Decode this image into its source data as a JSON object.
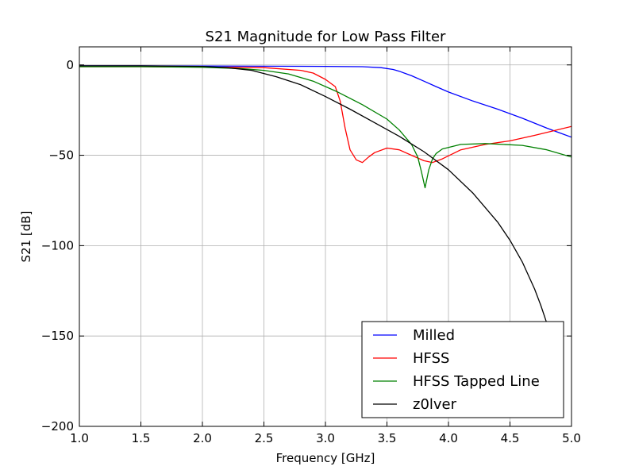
{
  "chart_data": {
    "type": "line",
    "title": "S21 Magnitude for Low Pass Filter",
    "xlabel": "Frequency [GHz]",
    "ylabel": "S21 [dB]",
    "xlim": [
      1.0,
      5.0
    ],
    "ylim": [
      -200,
      10
    ],
    "xticks": [
      1.0,
      1.5,
      2.0,
      2.5,
      3.0,
      3.5,
      4.0,
      4.5,
      5.0
    ],
    "xtick_labels": [
      "1.0",
      "1.5",
      "2.0",
      "2.5",
      "3.0",
      "3.5",
      "4.0",
      "4.5",
      "5.0"
    ],
    "yticks": [
      0,
      -50,
      -100,
      -150,
      -200
    ],
    "ytick_labels": [
      "0",
      "−50",
      "−100",
      "−150",
      "−200"
    ],
    "grid": true,
    "legend_position": "bottom-right",
    "series": [
      {
        "name": "Milled",
        "color": "#0000ff",
        "x": [
          1.0,
          1.5,
          2.0,
          2.5,
          3.0,
          3.3,
          3.45,
          3.55,
          3.6,
          3.7,
          3.8,
          3.9,
          4.0,
          4.2,
          4.4,
          4.6,
          4.8,
          4.9,
          5.0
        ],
        "y": [
          -0.5,
          -0.5,
          -0.6,
          -0.7,
          -0.8,
          -1.0,
          -1.5,
          -2.5,
          -3.5,
          -6.0,
          -9.0,
          -12.0,
          -15.0,
          -20.0,
          -24.5,
          -29.5,
          -35.0,
          -37.5,
          -40.0
        ]
      },
      {
        "name": "HFSS",
        "color": "#ff0000",
        "x": [
          1.0,
          1.5,
          2.0,
          2.5,
          2.8,
          2.9,
          3.0,
          3.08,
          3.12,
          3.16,
          3.2,
          3.25,
          3.3,
          3.35,
          3.4,
          3.5,
          3.6,
          3.7,
          3.8,
          3.87,
          3.95,
          4.1,
          4.3,
          4.5,
          4.7,
          5.0
        ],
        "y": [
          -1.0,
          -1.0,
          -1.2,
          -1.5,
          -3.0,
          -4.5,
          -8.0,
          -12.0,
          -20.0,
          -35.0,
          -47.0,
          -52.5,
          -54.0,
          -51.0,
          -48.5,
          -46.0,
          -47.0,
          -50.0,
          -53.0,
          -54.0,
          -52.0,
          -47.0,
          -44.0,
          -42.0,
          -39.0,
          -34.0
        ]
      },
      {
        "name": "HFSS Tapped Line",
        "color": "#008000",
        "x": [
          1.0,
          1.5,
          2.0,
          2.3,
          2.5,
          2.7,
          2.9,
          3.1,
          3.3,
          3.5,
          3.6,
          3.7,
          3.75,
          3.78,
          3.81,
          3.84,
          3.87,
          3.9,
          3.95,
          4.1,
          4.3,
          4.6,
          4.8,
          5.0
        ],
        "y": [
          -1.0,
          -1.0,
          -1.3,
          -2.0,
          -3.0,
          -5.0,
          -9.0,
          -15.0,
          -22.0,
          -30.0,
          -36.0,
          -44.0,
          -51.0,
          -59.0,
          -68.0,
          -58.0,
          -52.0,
          -49.0,
          -46.5,
          -44.0,
          -43.5,
          -44.5,
          -47.0,
          -51.0
        ]
      },
      {
        "name": "z0lver",
        "color": "#000000",
        "x": [
          1.0,
          1.5,
          2.0,
          2.2,
          2.4,
          2.6,
          2.8,
          3.0,
          3.2,
          3.4,
          3.6,
          3.8,
          4.0,
          4.2,
          4.4,
          4.5,
          4.6,
          4.7,
          4.75,
          4.8,
          4.85,
          4.88
        ],
        "y": [
          -0.5,
          -0.5,
          -0.8,
          -1.5,
          -3.0,
          -6.5,
          -11.0,
          -17.5,
          -24.5,
          -32.0,
          -39.5,
          -48.0,
          -58.0,
          -71.0,
          -87.0,
          -97.0,
          -109.0,
          -124.0,
          -133.0,
          -143.0,
          -155.0,
          -165.0
        ]
      }
    ]
  }
}
